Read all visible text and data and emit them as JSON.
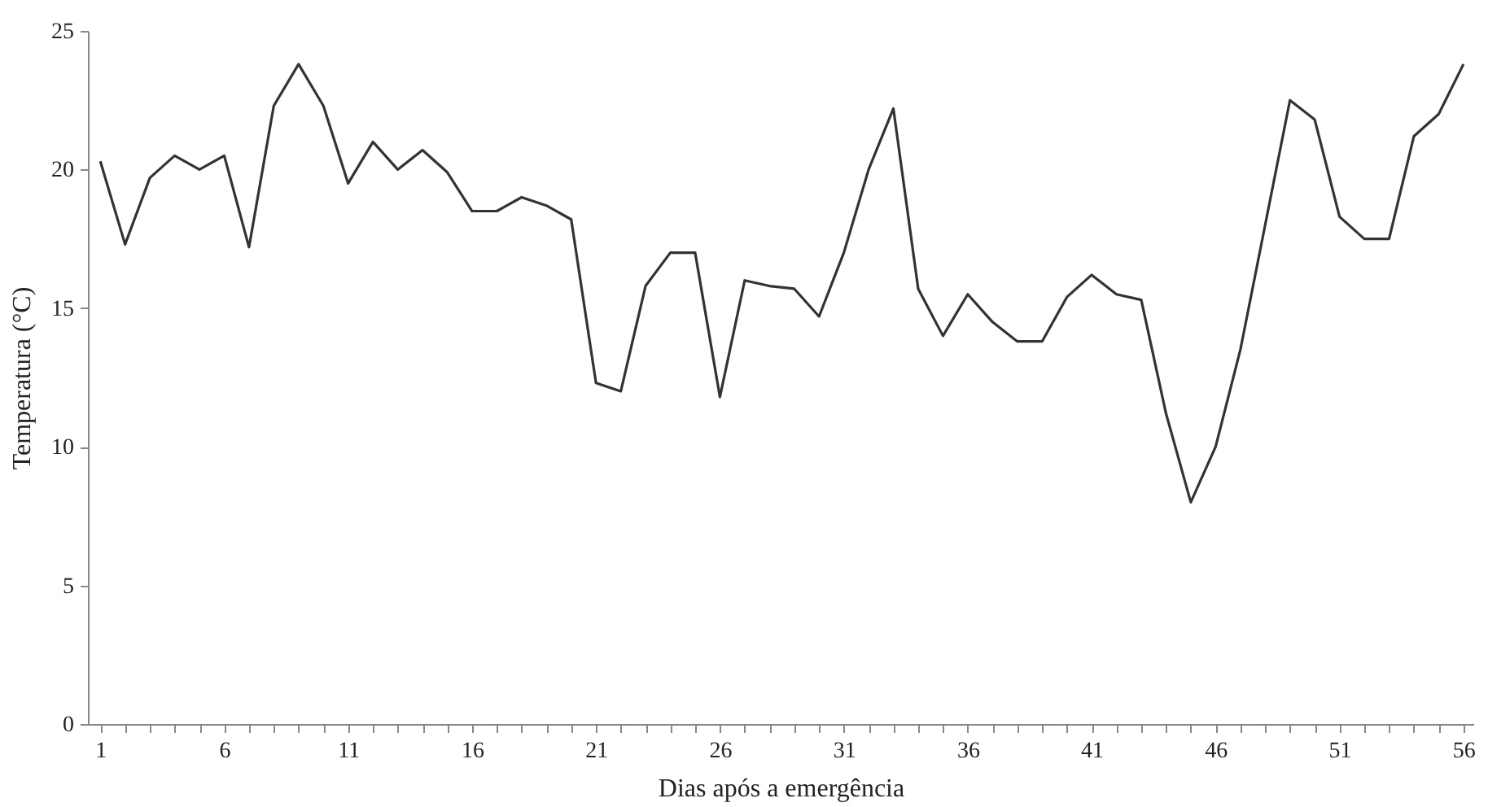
{
  "chart_data": {
    "type": "line",
    "xlabel": "Dias  após a emergência",
    "ylabel": "Temperatura  (°C)",
    "x": [
      1,
      2,
      3,
      4,
      5,
      6,
      7,
      8,
      9,
      10,
      11,
      12,
      13,
      14,
      15,
      16,
      17,
      18,
      19,
      20,
      21,
      22,
      23,
      24,
      25,
      26,
      27,
      28,
      29,
      30,
      31,
      32,
      33,
      34,
      35,
      36,
      37,
      38,
      39,
      40,
      41,
      42,
      43,
      44,
      45,
      46,
      47,
      48,
      49,
      50,
      51,
      52,
      53,
      54,
      55,
      56
    ],
    "series": [
      {
        "color": "#333333",
        "values": [
          20.3,
          17.3,
          19.7,
          20.5,
          20.0,
          20.5,
          17.2,
          22.3,
          23.8,
          22.3,
          19.5,
          21.0,
          20.0,
          20.7,
          19.9,
          18.5,
          18.5,
          19.0,
          18.7,
          18.2,
          12.3,
          12.0,
          15.8,
          17.0,
          17.0,
          11.8,
          16.0,
          15.8,
          15.7,
          14.7,
          17.0,
          20.0,
          22.2,
          15.7,
          14.0,
          15.5,
          14.5,
          13.8,
          13.8,
          15.4,
          16.2,
          15.5,
          15.3,
          11.2,
          8.0,
          10.0,
          13.5,
          18.0,
          22.5,
          21.8,
          18.3,
          17.5,
          17.5,
          21.2,
          22.0,
          23.8
        ]
      }
    ],
    "xlim": [
      0.5,
      56.4
    ],
    "xticks": [
      1,
      {
        "value": 2,
        "label": null
      },
      {
        "value": 3,
        "label": null
      },
      {
        "value": 4,
        "label": null
      },
      {
        "value": 5,
        "label": null
      },
      6,
      {
        "value": 7,
        "label": null
      },
      {
        "value": 8,
        "label": null
      },
      {
        "value": 9,
        "label": null
      },
      {
        "value": 10,
        "label": null
      },
      11,
      {
        "value": 12,
        "label": null
      },
      {
        "value": 13,
        "label": null
      },
      {
        "value": 14,
        "label": null
      },
      {
        "value": 15,
        "label": null
      },
      16,
      {
        "value": 17,
        "label": null
      },
      {
        "value": 18,
        "label": null
      },
      {
        "value": 19,
        "label": null
      },
      {
        "value": 20,
        "label": null
      },
      21,
      {
        "value": 22,
        "label": null
      },
      {
        "value": 23,
        "label": null
      },
      {
        "value": 24,
        "label": null
      },
      {
        "value": 25,
        "label": null
      },
      26,
      {
        "value": 27,
        "label": null
      },
      {
        "value": 28,
        "label": null
      },
      {
        "value": 29,
        "label": null
      },
      {
        "value": 30,
        "label": null
      },
      31,
      {
        "value": 32,
        "label": null
      },
      {
        "value": 33,
        "label": null
      },
      {
        "value": 34,
        "label": null
      },
      {
        "value": 35,
        "label": null
      },
      36,
      {
        "value": 37,
        "label": null
      },
      {
        "value": 38,
        "label": null
      },
      {
        "value": 39,
        "label": null
      },
      {
        "value": 40,
        "label": null
      },
      41,
      {
        "value": 42,
        "label": null
      },
      {
        "value": 43,
        "label": null
      },
      {
        "value": 44,
        "label": null
      },
      {
        "value": 45,
        "label": null
      },
      46,
      {
        "value": 47,
        "label": null
      },
      {
        "value": 48,
        "label": null
      },
      {
        "value": 49,
        "label": null
      },
      {
        "value": 50,
        "label": null
      },
      51,
      {
        "value": 52,
        "label": null
      },
      {
        "value": 53,
        "label": null
      },
      {
        "value": 54,
        "label": null
      },
      {
        "value": 55,
        "label": null
      },
      56
    ],
    "ylim": [
      0,
      25
    ],
    "yticks": [
      0,
      5,
      10,
      15,
      20,
      25
    ],
    "grid": false,
    "marker": "none",
    "line_style": "solid"
  }
}
